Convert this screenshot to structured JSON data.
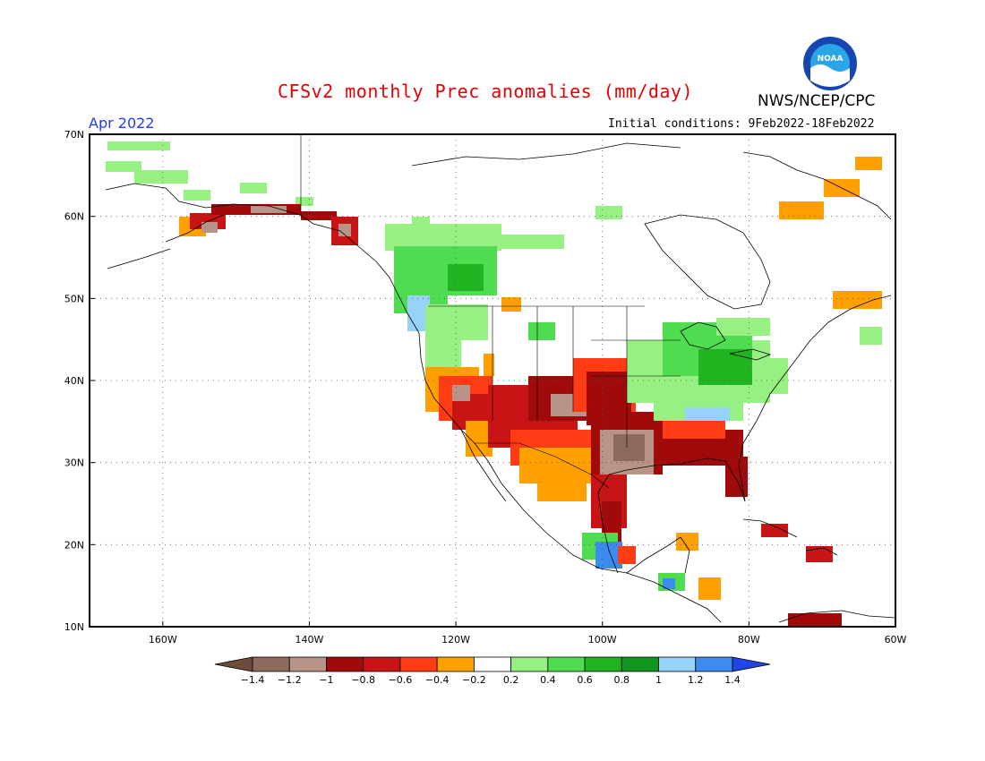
{
  "header": {
    "title": "CFSv2 monthly Prec anomalies (mm/day)",
    "agency": "NWS/NCEP/CPC",
    "logo_text": "NOAA",
    "month": "Apr 2022",
    "initial_conditions": "Initial conditions: 9Feb2022-18Feb2022"
  },
  "map": {
    "lat_labels": [
      "70N",
      "60N",
      "50N",
      "40N",
      "30N",
      "20N",
      "10N"
    ],
    "lon_labels": [
      "160W",
      "140W",
      "120W",
      "100W",
      "80W",
      "60W"
    ],
    "lat_values": [
      70,
      60,
      50,
      40,
      30,
      20,
      10
    ],
    "lon_values": [
      -160,
      -140,
      -120,
      -100,
      -80,
      -60
    ],
    "region": {
      "lon_min": -170,
      "lon_max": -60,
      "lat_min": 10,
      "lat_max": 70
    }
  },
  "colorbar": {
    "labels": [
      "-1.4",
      "-1.2",
      "-1",
      "-0.8",
      "-0.6",
      "-0.4",
      "-0.2",
      "0.2",
      "0.4",
      "0.6",
      "0.8",
      "1",
      "1.2",
      "1.4"
    ],
    "colors": [
      "#6e4a3a",
      "#8c6a5c",
      "#b89488",
      "#a00a0a",
      "#c81414",
      "#ff3c14",
      "#ffa000",
      "#ffffff",
      "#96f082",
      "#50dc50",
      "#20b420",
      "#10961e",
      "#96d2fa",
      "#3c8cf0",
      "#1e46e6"
    ]
  },
  "anomaly_colors": {
    "neg_strong": "#b89488",
    "neg_dark": "#8c6a5c",
    "dark_red": "#a00a0a",
    "red": "#c81414",
    "orange_red": "#ff3c14",
    "orange": "#ffa000",
    "light_green": "#96f082",
    "green": "#50dc50",
    "dark_green": "#20b420",
    "light_blue": "#96d2fa",
    "blue": "#3c8cf0"
  }
}
